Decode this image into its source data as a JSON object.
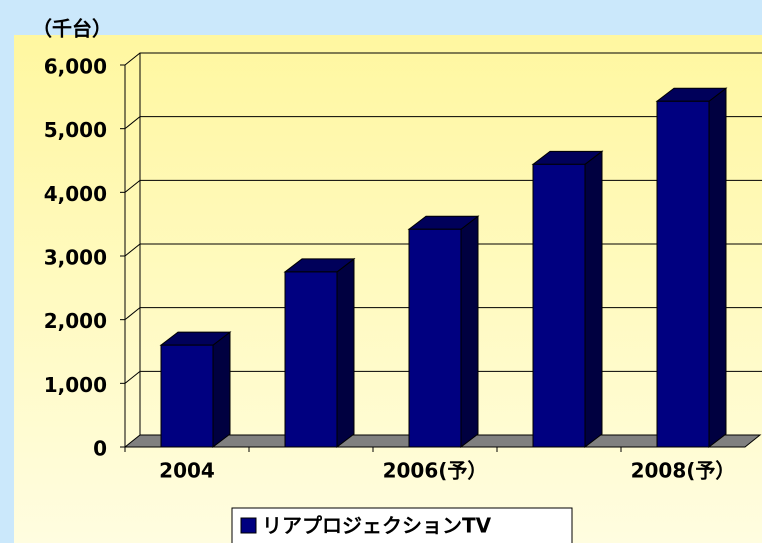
{
  "chart_data": {
    "type": "bar3d",
    "y_axis_label": "（千台）",
    "categories": [
      "2004",
      null,
      "2006(予）",
      null,
      "2008(予）"
    ],
    "series": [
      {
        "name": "リアプロジェクションTV",
        "color": "#000080",
        "values": [
          1600,
          2750,
          3420,
          4440,
          5430
        ]
      }
    ],
    "ylim": [
      0,
      6000
    ],
    "yticks": [
      0,
      {
        "value": 1000,
        "label": "1,000"
      },
      {
        "value": 2000,
        "label": "2,000"
      },
      {
        "value": 3000,
        "label": "3,000"
      },
      {
        "value": 4000,
        "label": "4,000"
      },
      {
        "value": 5000,
        "label": "5,000"
      },
      {
        "value": 6000,
        "label": "6,000"
      }
    ],
    "grid": true,
    "legend": "bottom"
  }
}
